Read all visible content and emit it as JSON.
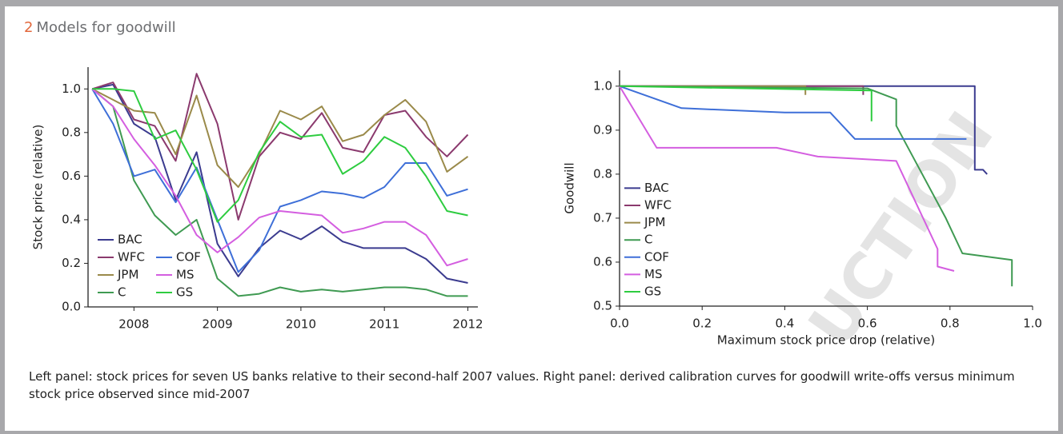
{
  "header": {
    "number": "2",
    "title": "Models for goodwill"
  },
  "watermark": "UCTION",
  "chart_data": [
    {
      "type": "line",
      "ylabel": "Stock price (relative)",
      "x": [
        2007.5,
        2007.75,
        2008,
        2008.25,
        2008.5,
        2008.75,
        2009,
        2009.25,
        2009.5,
        2009.75,
        2010,
        2010.25,
        2010.5,
        2010.75,
        2011,
        2011.25,
        2011.5,
        2011.75,
        2012
      ],
      "xlim": [
        2007.45,
        2012.12
      ],
      "xticks": [
        2008,
        2009,
        2010,
        2011,
        2012
      ],
      "ylim": [
        0,
        1.1
      ],
      "yticks": [
        {
          "value": 0,
          "label": "0.0"
        },
        0.2,
        0.4,
        0.6,
        0.8,
        {
          "value": 1,
          "label": "1.0"
        }
      ],
      "legend": "lower left",
      "legend_columns": 2,
      "series": [
        {
          "name": "BAC",
          "color": "#3b3b8f",
          "values": [
            1.0,
            1.02,
            0.84,
            0.78,
            0.49,
            0.71,
            0.29,
            0.14,
            0.27,
            0.35,
            0.31,
            0.37,
            0.3,
            0.27,
            0.27,
            0.27,
            0.22,
            0.13,
            0.11
          ]
        },
        {
          "name": "WFC",
          "color": "#8b3a6e",
          "values": [
            1.0,
            1.03,
            0.86,
            0.83,
            0.67,
            1.07,
            0.84,
            0.4,
            0.69,
            0.8,
            0.77,
            0.89,
            0.73,
            0.71,
            0.88,
            0.9,
            0.78,
            0.69,
            0.79
          ]
        },
        {
          "name": "JPM",
          "color": "#9a8a4a",
          "values": [
            1.0,
            0.95,
            0.9,
            0.89,
            0.7,
            0.97,
            0.65,
            0.55,
            0.7,
            0.9,
            0.86,
            0.92,
            0.76,
            0.79,
            0.88,
            0.95,
            0.85,
            0.62,
            0.69
          ]
        },
        {
          "name": "C",
          "color": "#3f9a52",
          "values": [
            1.0,
            0.92,
            0.58,
            0.42,
            0.33,
            0.4,
            0.13,
            0.05,
            0.06,
            0.09,
            0.07,
            0.08,
            0.07,
            0.08,
            0.09,
            0.09,
            0.08,
            0.05,
            0.05
          ]
        },
        {
          "name": "COF",
          "color": "#3e6fd8",
          "values": [
            1.0,
            0.84,
            0.6,
            0.63,
            0.48,
            0.64,
            0.4,
            0.16,
            0.26,
            0.46,
            0.49,
            0.53,
            0.52,
            0.5,
            0.55,
            0.66,
            0.66,
            0.51,
            0.54
          ]
        },
        {
          "name": "MS",
          "color": "#d45ee0",
          "values": [
            1.0,
            0.92,
            0.77,
            0.65,
            0.51,
            0.33,
            0.25,
            0.32,
            0.41,
            0.44,
            0.43,
            0.42,
            0.34,
            0.36,
            0.39,
            0.39,
            0.33,
            0.19,
            0.22
          ]
        },
        {
          "name": "GS",
          "color": "#2ecc40",
          "values": [
            1.0,
            1.0,
            0.99,
            0.77,
            0.81,
            0.63,
            0.39,
            0.49,
            0.71,
            0.85,
            0.78,
            0.79,
            0.61,
            0.67,
            0.78,
            0.73,
            0.6,
            0.44,
            0.42
          ]
        }
      ]
    },
    {
      "type": "line",
      "xlabel": "Maximum stock price drop (relative)",
      "ylabel": "Goodwill",
      "xlim": [
        0,
        1
      ],
      "xticks": [
        {
          "value": 0,
          "label": "0.0"
        },
        0.2,
        0.4,
        0.6,
        0.8,
        {
          "value": 1,
          "label": "1.0"
        }
      ],
      "ylim": [
        0.5,
        1.036
      ],
      "yticks": [
        0.5,
        0.6,
        0.7,
        0.8,
        0.9,
        {
          "value": 1,
          "label": "1.0"
        }
      ],
      "legend": "lower left",
      "legend_columns": 1,
      "series": [
        {
          "name": "BAC",
          "color": "#3b3b8f",
          "x": [
            0,
            0.86,
            0.86,
            0.88,
            0.89
          ],
          "values": [
            1.0,
            1.0,
            0.81,
            0.81,
            0.8
          ]
        },
        {
          "name": "WFC",
          "color": "#8b3a6e",
          "x": [
            0,
            0.59,
            0.59
          ],
          "values": [
            1.0,
            1.0,
            0.98
          ]
        },
        {
          "name": "JPM",
          "color": "#9a8a4a",
          "x": [
            0,
            0.45,
            0.45
          ],
          "values": [
            1.0,
            1.0,
            0.98
          ]
        },
        {
          "name": "C",
          "color": "#3f9a52",
          "x": [
            0,
            0.6,
            0.67,
            0.67,
            0.79,
            0.83,
            0.95,
            0.95
          ],
          "values": [
            1.0,
            0.995,
            0.97,
            0.91,
            0.7,
            0.62,
            0.605,
            0.545
          ]
        },
        {
          "name": "COF",
          "color": "#3e6fd8",
          "x": [
            0,
            0.15,
            0.4,
            0.51,
            0.57,
            0.84
          ],
          "values": [
            1.0,
            0.95,
            0.94,
            0.94,
            0.88,
            0.88
          ]
        },
        {
          "name": "MS",
          "color": "#d45ee0",
          "x": [
            0,
            0.09,
            0.38,
            0.48,
            0.67,
            0.77,
            0.77,
            0.81
          ],
          "values": [
            1.0,
            0.86,
            0.86,
            0.84,
            0.83,
            0.63,
            0.59,
            0.58
          ]
        },
        {
          "name": "GS",
          "color": "#2ecc40",
          "x": [
            0,
            0.61,
            0.61
          ],
          "values": [
            1.0,
            0.99,
            0.92
          ]
        }
      ]
    }
  ],
  "caption": "Left panel: stock prices for seven US banks relative to their second-half 2007 values. Right panel: derived calibration curves for goodwill write-offs versus minimum stock price observed since mid-2007"
}
